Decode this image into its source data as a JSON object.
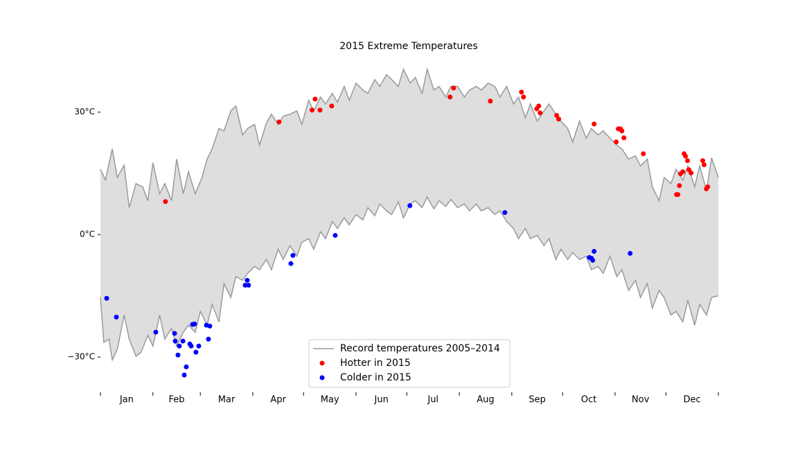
{
  "chart_data": {
    "type": "band-scatter",
    "title": "2015 Extreme Temperatures",
    "xlim": [
      0,
      365
    ],
    "ylim": [
      -38.1,
      41.2
    ],
    "yticks": [
      {
        "value": -30,
        "label": "−30°C"
      },
      {
        "value": 0,
        "label": "0°C"
      },
      {
        "value": 30,
        "label": "30°C"
      }
    ],
    "xticks": [
      0,
      31,
      59,
      90,
      120,
      151,
      181,
      212,
      243,
      273,
      304,
      334,
      365
    ],
    "categories": [
      "Jan",
      "Feb",
      "Mar",
      "Apr",
      "May",
      "Jun",
      "Jul",
      "Aug",
      "Sep",
      "Oct",
      "Nov",
      "Dec"
    ],
    "record": {
      "name": "Record temperatures 2005–2014",
      "color": "#999999",
      "fill": "#dedede",
      "high": {
        "x": [
          0,
          3,
          7,
          10,
          14,
          17,
          21,
          25,
          28,
          31,
          35,
          38,
          42,
          45,
          49,
          52,
          56,
          60,
          63,
          66,
          70,
          73,
          77,
          80,
          84,
          87,
          91,
          94,
          98,
          101,
          105,
          108,
          112,
          116,
          119,
          123,
          126,
          130,
          133,
          137,
          140,
          144,
          147,
          151,
          155,
          158,
          162,
          165,
          169,
          172,
          176,
          179,
          183,
          186,
          190,
          193,
          197,
          200,
          204,
          207,
          211,
          215,
          218,
          222,
          225,
          229,
          233,
          236,
          240,
          244,
          247,
          251,
          254,
          258,
          262,
          265,
          269,
          272,
          276,
          279,
          283,
          287,
          290,
          294,
          297,
          301,
          305,
          308,
          312,
          316,
          319,
          323,
          326,
          330,
          333,
          337,
          340,
          344,
          347,
          351,
          354,
          358,
          361,
          365
        ],
        "values": [
          16,
          13.4,
          21,
          14,
          17,
          6.6,
          12.5,
          11.7,
          8.3,
          17.6,
          10,
          12.5,
          8.3,
          18.5,
          10,
          15.4,
          10,
          14,
          18.5,
          21,
          26,
          25.4,
          30.3,
          31.5,
          24.4,
          26,
          27,
          21.9,
          27.3,
          29.5,
          27,
          29,
          29.5,
          30.3,
          27,
          32.9,
          30.3,
          33.7,
          32,
          34.6,
          32.4,
          36.3,
          32.9,
          37.1,
          35.4,
          34.6,
          38,
          36.3,
          39.2,
          38,
          36.3,
          40.5,
          37.1,
          38.5,
          34.6,
          40.5,
          35.4,
          36.3,
          33.7,
          36.3,
          36.3,
          33.7,
          35.4,
          36.3,
          35.4,
          37.1,
          36.3,
          33.7,
          36.3,
          32,
          33.7,
          28.6,
          32,
          27.8,
          30.3,
          32,
          29.5,
          27.8,
          26,
          22.7,
          27.8,
          23.6,
          26,
          24.4,
          25.4,
          23.6,
          21.9,
          21,
          18.5,
          19.3,
          16.8,
          18.5,
          11.7,
          8.3,
          14,
          12.5,
          16,
          13.4,
          16.8,
          11.7,
          16.8,
          10.8,
          18.8,
          14
        ]
      },
      "low": {
        "x": [
          0,
          2,
          5,
          7,
          10,
          14,
          17,
          21,
          24,
          28,
          31,
          35,
          38,
          42,
          45,
          49,
          52,
          56,
          59,
          63,
          66,
          70,
          73,
          77,
          80,
          84,
          87,
          91,
          94,
          98,
          101,
          105,
          108,
          112,
          116,
          119,
          123,
          126,
          130,
          133,
          137,
          140,
          144,
          147,
          151,
          155,
          158,
          162,
          165,
          169,
          172,
          176,
          179,
          183,
          186,
          190,
          193,
          197,
          200,
          204,
          207,
          211,
          215,
          218,
          222,
          225,
          229,
          233,
          236,
          240,
          244,
          247,
          251,
          254,
          258,
          262,
          265,
          269,
          272,
          276,
          279,
          283,
          287,
          290,
          294,
          297,
          301,
          305,
          308,
          312,
          316,
          319,
          323,
          326,
          330,
          333,
          337,
          340,
          344,
          347,
          351,
          354,
          358,
          361,
          365
        ],
        "values": [
          -15.4,
          -26.4,
          -25.6,
          -30.7,
          -28.1,
          -19.7,
          -25.6,
          -29.8,
          -28.8,
          -24.7,
          -27.3,
          -19.7,
          -25.6,
          -23,
          -27.3,
          -23.9,
          -22.2,
          -23.9,
          -18.8,
          -22.2,
          -17.1,
          -21.4,
          -12,
          -15.4,
          -10.3,
          -11.2,
          -9.5,
          -7.8,
          -8.6,
          -6.1,
          -8.6,
          -3.6,
          -6.1,
          -2.7,
          -5.3,
          -1.9,
          -1,
          -3.6,
          0.7,
          -1,
          3.2,
          1.5,
          4.1,
          2.4,
          4.9,
          3.6,
          6.6,
          4.6,
          7.5,
          5.8,
          4.9,
          8,
          4.1,
          7.5,
          8.3,
          6.6,
          9.2,
          6.3,
          8.3,
          6.9,
          8.6,
          6.6,
          7.5,
          5.8,
          7.5,
          5.8,
          6.6,
          4.9,
          5.8,
          3.2,
          1.5,
          -1,
          1.5,
          -1,
          -0.2,
          -2.7,
          -1,
          -6.1,
          -3.6,
          -6.1,
          -4.4,
          -6.1,
          -5.3,
          -8.6,
          -7.8,
          -9.5,
          -5.3,
          -10.3,
          -8.6,
          -13.7,
          -11.2,
          -15.4,
          -12,
          -18,
          -13.7,
          -15.4,
          -19.7,
          -18.8,
          -21.4,
          -16.1,
          -22.2,
          -17.1,
          -19.7,
          -15.4,
          -15
        ]
      }
    },
    "series": [
      {
        "name": "Hotter in 2015",
        "color": "#ff0000",
        "x": [
          38.4,
          105.5,
          125,
          126.8,
          129.7,
          136.6,
          206.5,
          208.6,
          230.3,
          248.7,
          249.9,
          257.7,
          258.9,
          259.7,
          269.5,
          270.7,
          291.6,
          304.7,
          305.9,
          307.2,
          308,
          309.2,
          320.7,
          340.3,
          341.1,
          342,
          342.7,
          344,
          344.8,
          345.6,
          346.8,
          347.6,
          348.9,
          355.8,
          356.6,
          357.9,
          358.7
        ],
        "values": [
          8.1,
          27.6,
          30.5,
          33.2,
          30.5,
          31.5,
          33.7,
          35.9,
          32.7,
          34.9,
          33.7,
          30.8,
          31.5,
          29.8,
          29.2,
          28.3,
          27.1,
          22.7,
          25.9,
          25.9,
          25.4,
          23.7,
          19.8,
          9.8,
          9.8,
          12,
          14.9,
          15.4,
          19.8,
          19.2,
          18.1,
          15.9,
          15.1,
          18.1,
          17.1,
          11.2,
          11.7
        ]
      },
      {
        "name": "Colder in 2015",
        "color": "#0000ff",
        "x": [
          3.7,
          9.4,
          32.7,
          43.8,
          44.2,
          45.8,
          46.6,
          48.7,
          49.5,
          50.7,
          52.8,
          53.6,
          54.4,
          55.6,
          56.4,
          58.1,
          62.6,
          63.8,
          64.6,
          85.5,
          86.7,
          87.5,
          112.5,
          113.7,
          138.7,
          182.8,
          238.9,
          288.8,
          290,
          290.8,
          291.6,
          312.9
        ],
        "values": [
          -15.6,
          -20.2,
          -23.9,
          -24.2,
          -26.1,
          -29.5,
          -27.3,
          -26.1,
          -34.4,
          -32.4,
          -26.8,
          -27.3,
          -22,
          -21.9,
          -28.8,
          -27.3,
          -22.2,
          -25.6,
          -22.4,
          -12.4,
          -11.2,
          -12.4,
          -7.1,
          -5.1,
          -0.2,
          7.1,
          5.4,
          -5.6,
          -5.8,
          -6.3,
          -4.1,
          -4.6
        ]
      }
    ]
  }
}
